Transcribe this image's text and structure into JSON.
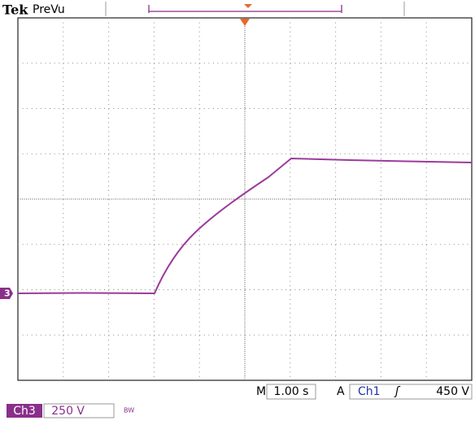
{
  "header": {
    "brand": "Tek",
    "mode": "PreVu"
  },
  "channel_marker": "3",
  "status": {
    "timebase_label": "M",
    "timebase": "1.00 s",
    "trigger_label": "A",
    "trigger_source": "Ch1",
    "trigger_slope": "ʃ",
    "trigger_level": "450 V"
  },
  "channel": {
    "name": "Ch3",
    "scale": "250 V",
    "bandwidth": "BW"
  }
}
